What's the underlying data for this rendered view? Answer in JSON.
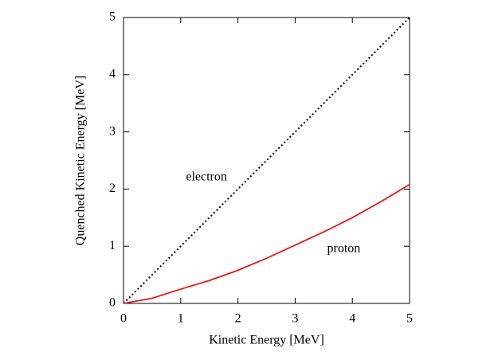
{
  "chart_data": {
    "type": "line",
    "xlabel": "Kinetic Energy [MeV]",
    "ylabel": "Quenched Kinetic Energy [MeV]",
    "x": [
      0,
      0.5,
      1,
      1.5,
      2,
      2.5,
      3,
      3.5,
      4,
      4.5,
      5
    ],
    "series": [
      {
        "name": "electron",
        "color": "#000000",
        "style": "dotted",
        "values": [
          0,
          0.5,
          1,
          1.5,
          2,
          2.5,
          3,
          3.5,
          4,
          4.5,
          5
        ]
      },
      {
        "name": "proton",
        "color": "#e41a1c",
        "style": "solid",
        "values": [
          0,
          0.09,
          0.25,
          0.4,
          0.58,
          0.79,
          1.02,
          1.25,
          1.5,
          1.78,
          2.08
        ]
      }
    ],
    "xlim": [
      0,
      5
    ],
    "ylim": [
      0,
      5
    ],
    "xticks": [
      0,
      1,
      2,
      3,
      4,
      5
    ],
    "yticks": [
      0,
      1,
      2,
      3,
      4,
      5
    ],
    "grid": false
  }
}
